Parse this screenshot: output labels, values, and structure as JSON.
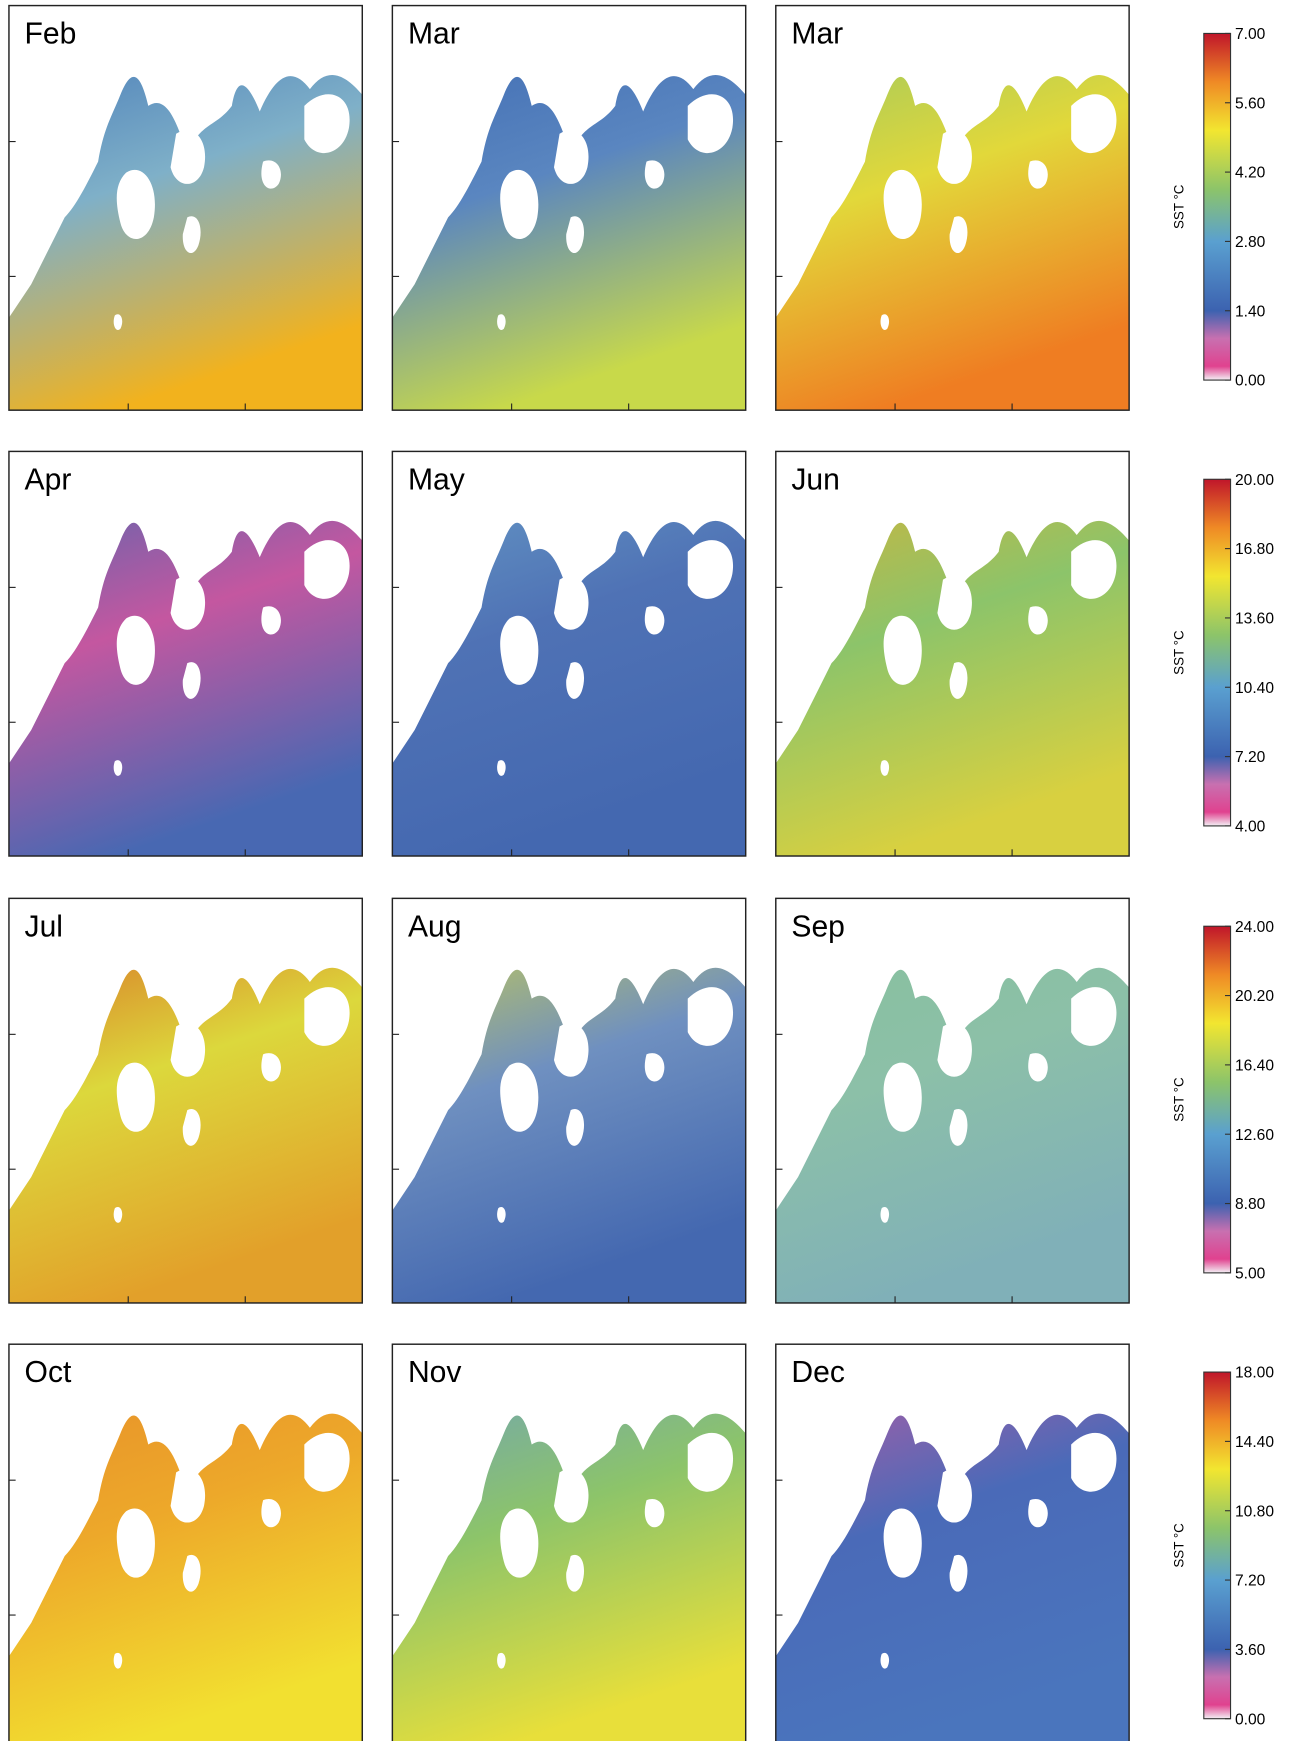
{
  "rows": [
    {
      "panels": [
        "Feb",
        "Mar",
        "Mar"
      ],
      "colorbar": {
        "label": "SST °C",
        "ticks": [
          {
            "value": 0,
            "label": "0.00"
          },
          {
            "value": 1.4,
            "label": "1.40"
          },
          {
            "value": 2.8,
            "label": "2.80"
          },
          {
            "value": 4.2,
            "label": "4.20"
          },
          {
            "value": 5.6,
            "label": "5.60"
          },
          {
            "value": 7,
            "label": "7.00"
          }
        ]
      }
    },
    {
      "panels": [
        "Apr",
        "May",
        "Jun"
      ],
      "colorbar": {
        "label": "SST °C",
        "ticks": [
          {
            "value": 4,
            "label": "4.00"
          },
          {
            "value": 7.2,
            "label": "7.20"
          },
          {
            "value": 10.4,
            "label": "10.40"
          },
          {
            "value": 13.6,
            "label": "13.60"
          },
          {
            "value": 16.8,
            "label": "16.80"
          },
          {
            "value": 20,
            "label": "20.00"
          }
        ]
      }
    },
    {
      "panels": [
        "Jul",
        "Aug",
        "Sep"
      ],
      "colorbar": {
        "label": "SST °C",
        "ticks": [
          {
            "value": 5,
            "label": "5.00"
          },
          {
            "value": 8.8,
            "label": "8.80"
          },
          {
            "value": 12.6,
            "label": "12.60"
          },
          {
            "value": 16.4,
            "label": "16.40"
          },
          {
            "value": 20.2,
            "label": "20.20"
          },
          {
            "value": 24,
            "label": "24.00"
          }
        ]
      }
    },
    {
      "panels": [
        "Oct",
        "Nov",
        "Dec"
      ],
      "colorbar": {
        "label": "SST °C",
        "ticks": [
          {
            "value": 0,
            "label": "0.00"
          },
          {
            "value": 3.6,
            "label": "3.60"
          },
          {
            "value": 7.2,
            "label": "7.20"
          },
          {
            "value": 10.8,
            "label": "10.80"
          },
          {
            "value": 14.4,
            "label": "14.40"
          },
          {
            "value": 18,
            "label": "18.00"
          }
        ]
      }
    }
  ]
}
